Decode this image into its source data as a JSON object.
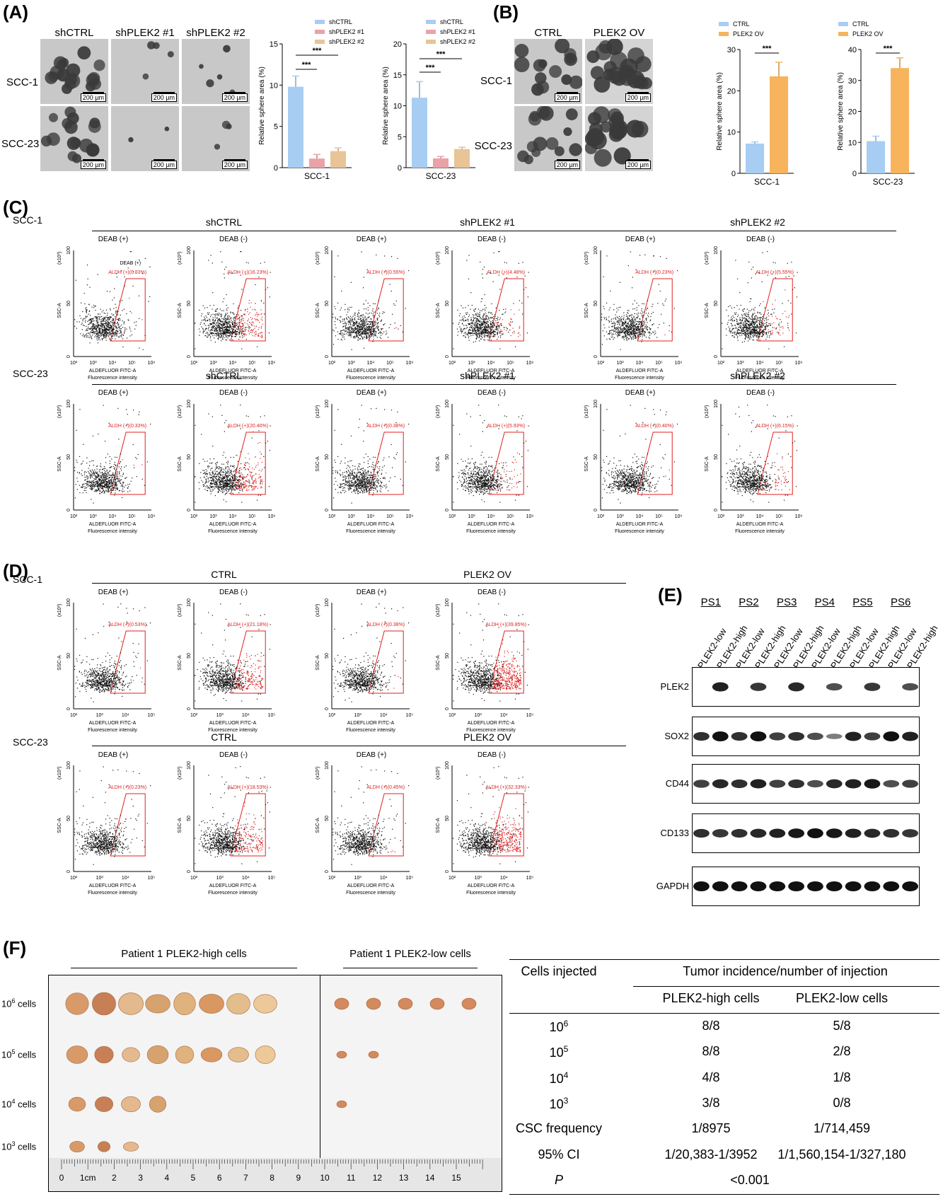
{
  "panels": {
    "A": "(A)",
    "B": "(B)",
    "C": "(C)",
    "D": "(D)",
    "E": "(E)",
    "F": "(F)"
  },
  "panel_a": {
    "columns": [
      "shCTRL",
      "shPLEK2 #1",
      "shPLEK2 #2"
    ],
    "rows": [
      "SCC-1",
      "SCC-23"
    ],
    "scale_bar": "200 µm"
  },
  "panel_b": {
    "columns": [
      "CTRL",
      "PLEK2 OV"
    ],
    "rows": [
      "SCC-1",
      "SCC-23"
    ],
    "scale_bar": "200 µm"
  },
  "chart_data": [
    {
      "type": "bar",
      "panel": "A",
      "categories": [
        "SCC-1"
      ],
      "series": [
        {
          "name": "shCTRL",
          "values": [
            9.8
          ],
          "error": [
            1.3
          ],
          "color": "#a8cdf2"
        },
        {
          "name": "shPLEK2 #1",
          "values": [
            1.1
          ],
          "error": [
            0.5
          ],
          "color": "#eaa2a8"
        },
        {
          "name": "shPLEK2 #2",
          "values": [
            2.0
          ],
          "error": [
            0.4
          ],
          "color": "#e8c496"
        }
      ],
      "ylabel": "Relative sphere area (%)",
      "ylim": [
        0,
        15
      ],
      "yticks": [
        0,
        5,
        10,
        15
      ],
      "significance": [
        "***",
        "***"
      ],
      "legend": "top"
    },
    {
      "type": "bar",
      "panel": "A",
      "categories": [
        "SCC-23"
      ],
      "series": [
        {
          "name": "shCTRL",
          "values": [
            11.3
          ],
          "error": [
            2.6
          ],
          "color": "#a8cdf2"
        },
        {
          "name": "shPLEK2 #1",
          "values": [
            1.5
          ],
          "error": [
            0.3
          ],
          "color": "#eaa2a8"
        },
        {
          "name": "shPLEK2 #2",
          "values": [
            3.0
          ],
          "error": [
            0.3
          ],
          "color": "#e8c496"
        }
      ],
      "ylabel": "Relative sphere area (%)",
      "ylim": [
        0,
        20
      ],
      "yticks": [
        0,
        5,
        10,
        15,
        20
      ],
      "significance": [
        "***",
        "***"
      ],
      "legend": "top"
    },
    {
      "type": "bar",
      "panel": "B",
      "categories": [
        "SCC-1"
      ],
      "series": [
        {
          "name": "CTRL",
          "values": [
            7.2
          ],
          "error": [
            0.4
          ],
          "color": "#a8cdf2"
        },
        {
          "name": "PLEK2 OV",
          "values": [
            23.5
          ],
          "error": [
            3.4
          ],
          "color": "#f7b45c"
        }
      ],
      "ylabel": "Relative sphere area (%)",
      "ylim": [
        0,
        30
      ],
      "yticks": [
        0,
        10,
        20,
        30
      ],
      "significance": [
        "***"
      ],
      "legend": "top"
    },
    {
      "type": "bar",
      "panel": "B",
      "categories": [
        "SCC-23"
      ],
      "series": [
        {
          "name": "CTRL",
          "values": [
            10.4
          ],
          "error": [
            1.6
          ],
          "color": "#a8cdf2"
        },
        {
          "name": "PLEK2 OV",
          "values": [
            34.0
          ],
          "error": [
            3.3
          ],
          "color": "#f7b45c"
        }
      ],
      "ylabel": "Relative sphere area (%)",
      "ylim": [
        0,
        40
      ],
      "yticks": [
        0,
        10,
        20,
        30,
        40
      ],
      "significance": [
        "***"
      ],
      "legend": "top"
    }
  ],
  "panel_c": {
    "groups": [
      "shCTRL",
      "shPLEK2 #1",
      "shPLEK2 #2"
    ],
    "rows": [
      {
        "label": "SCC-1",
        "gates": [
          "ALDH (+)(0.83%)",
          "ALDH (+)(16.23%)",
          "ALDH (+)(0.55%)",
          "ALDH (+)(4.48%)",
          "ALDH (+)(0.23%)",
          "ALDH (+)(5.55%)"
        ]
      },
      {
        "label": "SCC-23",
        "gates": [
          "ALDH (+)(0.33%)",
          "ALDH (+)(20.40%)",
          "ALDH (+)(0.38%)",
          "ALDH (+)(5.93%)",
          "ALDH (+)(0.40%)",
          "ALDH (+)(6.15%)"
        ]
      }
    ],
    "extra_label": "DEAB (+)"
  },
  "panel_d": {
    "groups": [
      "CTRL",
      "PLEK2 OV"
    ],
    "rows": [
      {
        "label": "SCC-1",
        "gates": [
          "ALDH (+)(0.53%)",
          "ALDH (+)(21.18%)",
          "ALDH (+)(0.38%)",
          "ALDH (+)(39.85%)"
        ]
      },
      {
        "label": "SCC-23",
        "gates": [
          "ALDH (+)(0.23%)",
          "ALDH (+)(18.53%)",
          "ALDH (+)(0.45%)",
          "ALDH (+)(32.33%)"
        ]
      }
    ]
  },
  "flow": {
    "deab_pos": "DEAB (+)",
    "deab_neg": "DEAB (-)",
    "yaxis": "SSC-A",
    "yscale": "(x10³)",
    "yticks": [
      "0",
      "50",
      "100"
    ],
    "xaxis_1": "ALDEFLUOR FITC-A",
    "xaxis_2": "Fluorescence intensity",
    "xticks_c": [
      "10²",
      "10³",
      "10⁴",
      "10⁵",
      "10⁶"
    ],
    "xticks_d": [
      "10²",
      "10³",
      "10⁴",
      "10⁵"
    ]
  },
  "panel_e": {
    "groups": [
      "PS1",
      "PS2",
      "PS3",
      "PS4",
      "PS5",
      "PS6"
    ],
    "lanes": [
      "PLEK2-low",
      "PLEK2-high",
      "PLEK2-low",
      "PLEK2-high",
      "PLEK2-low",
      "PLEK2-high",
      "PLEK2-low",
      "PLEK2-high",
      "PLEK2-low",
      "PLEK2-high",
      "PLEK2-low",
      "PLEK2-high"
    ],
    "blots": [
      {
        "label": "PLEK2",
        "intensity": [
          0,
          0.9,
          0,
          0.75,
          0,
          0.85,
          0,
          0.6,
          0,
          0.75,
          0,
          0.6
        ]
      },
      {
        "label": "SOX2",
        "intensity": [
          0.8,
          1.0,
          0.8,
          1.0,
          0.7,
          0.8,
          0.6,
          0.3,
          0.9,
          0.7,
          1.0,
          0.9
        ]
      },
      {
        "label": "CD44",
        "intensity": [
          0.7,
          0.85,
          0.8,
          0.9,
          0.7,
          0.8,
          0.6,
          0.85,
          0.9,
          0.95,
          0.6,
          0.7
        ]
      },
      {
        "label": "CD133",
        "intensity": [
          0.8,
          0.75,
          0.8,
          0.85,
          0.9,
          0.95,
          1.0,
          0.95,
          0.9,
          0.85,
          0.8,
          0.75
        ]
      },
      {
        "label": "GAPDH",
        "intensity": [
          1,
          1,
          1,
          1,
          1,
          1,
          1,
          1,
          1,
          1,
          1,
          1
        ]
      }
    ]
  },
  "panel_f": {
    "photo_high_title": "Patient 1 PLEK2-high cells",
    "photo_low_title": "Patient 1 PLEK2-low cells",
    "dose_labels": [
      {
        "base": "10",
        "exp": "6",
        "unit": " cells"
      },
      {
        "base": "10",
        "exp": "5",
        "unit": " cells"
      },
      {
        "base": "10",
        "exp": "4",
        "unit": " cells"
      },
      {
        "base": "10",
        "exp": "3",
        "unit": " cells"
      }
    ],
    "high_counts": [
      8,
      8,
      4,
      3
    ],
    "low_counts": [
      5,
      2,
      1,
      0
    ],
    "ruler_labels": [
      "0",
      "1cm",
      "2",
      "3",
      "4",
      "5",
      "6",
      "7",
      "8",
      "9",
      "10",
      "11",
      "12",
      "13",
      "14",
      "15"
    ],
    "table": {
      "col1_header": "Cells injected",
      "col_span_header": "Tumor incidence/number of injection",
      "sub_headers": [
        "PLEK2-high cells",
        "PLEK2-low cells"
      ],
      "rows": [
        {
          "base": "10",
          "exp": "6",
          "high": "8/8",
          "low": "5/8"
        },
        {
          "base": "10",
          "exp": "5",
          "high": "8/8",
          "low": "2/8"
        },
        {
          "base": "10",
          "exp": "4",
          "high": "4/8",
          "low": "1/8"
        },
        {
          "base": "10",
          "exp": "3",
          "high": "3/8",
          "low": "0/8"
        }
      ],
      "csc_label": "CSC frequency",
      "csc_high": "1/8975",
      "csc_low": "1/714,459",
      "ci_label": "95% CI",
      "ci_high": "1/20,383-1/3952",
      "ci_low": "1/1,560,154-1/327,180",
      "p_label": "P",
      "p_value": "<0.001"
    }
  }
}
